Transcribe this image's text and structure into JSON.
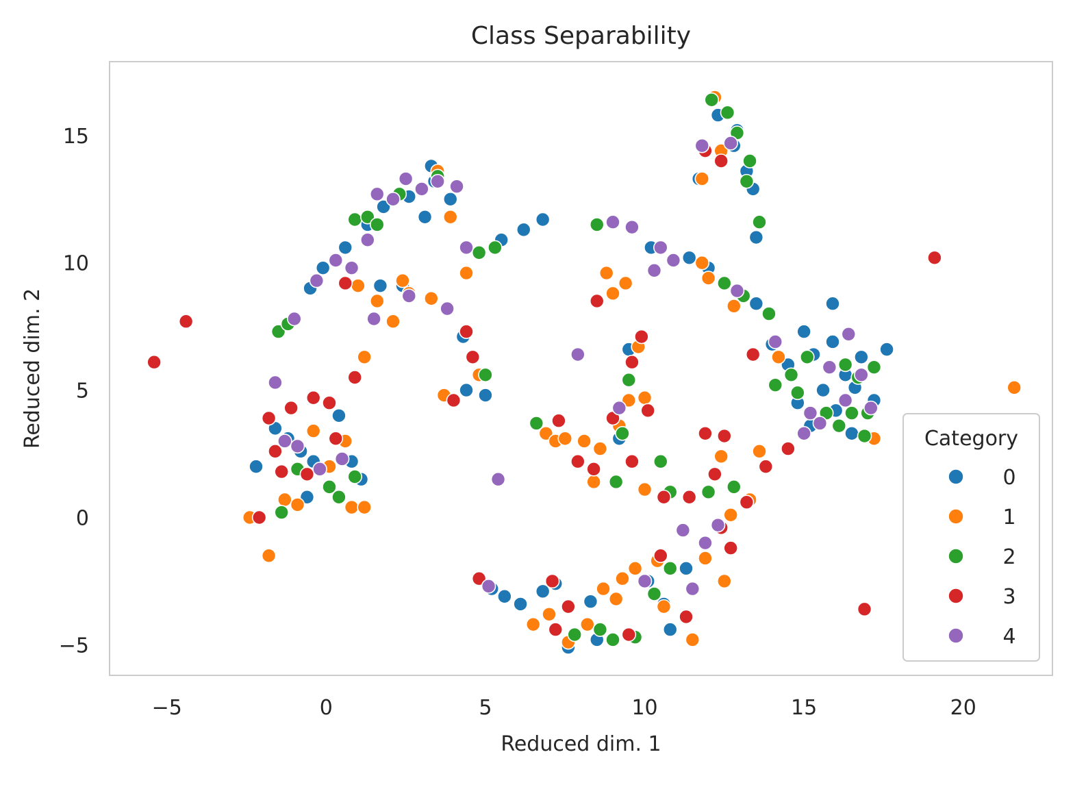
{
  "chart_data": {
    "type": "scatter",
    "title": "Class Separability",
    "xlabel": "Reduced dim. 1",
    "ylabel": "Reduced dim. 2",
    "xlim": [
      -6.8,
      22.8
    ],
    "ylim": [
      -6.2,
      17.9
    ],
    "xticks": [
      -5,
      0,
      5,
      10,
      15,
      20
    ],
    "yticks": [
      -5,
      0,
      5,
      10,
      15
    ],
    "xtick_labels": [
      "−5",
      "0",
      "5",
      "10",
      "15",
      "20"
    ],
    "ytick_labels": [
      "−5",
      "0",
      "5",
      "10",
      "15"
    ],
    "grid": false,
    "legend": {
      "title": "Category",
      "position": "lower-right"
    },
    "series": [
      {
        "name": "0",
        "color": "#1f77b4",
        "points": [
          [
            -2.2,
            2.0
          ],
          [
            -1.6,
            3.5
          ],
          [
            -1.2,
            3.1
          ],
          [
            -0.8,
            2.6
          ],
          [
            -0.4,
            2.2
          ],
          [
            -0.6,
            0.8
          ],
          [
            0.4,
            4.0
          ],
          [
            0.8,
            2.2
          ],
          [
            1.1,
            1.5
          ],
          [
            -0.5,
            9.0
          ],
          [
            -0.1,
            9.8
          ],
          [
            0.6,
            10.6
          ],
          [
            1.3,
            11.5
          ],
          [
            1.8,
            12.2
          ],
          [
            2.6,
            12.6
          ],
          [
            3.1,
            11.8
          ],
          [
            3.4,
            13.2
          ],
          [
            3.9,
            12.5
          ],
          [
            3.3,
            13.8
          ],
          [
            1.7,
            9.1
          ],
          [
            2.4,
            9.1
          ],
          [
            4.3,
            7.1
          ],
          [
            4.4,
            5.0
          ],
          [
            5.0,
            4.8
          ],
          [
            5.5,
            10.9
          ],
          [
            6.2,
            11.3
          ],
          [
            6.8,
            11.7
          ],
          [
            5.2,
            -2.8
          ],
          [
            5.6,
            -3.1
          ],
          [
            6.1,
            -3.4
          ],
          [
            6.8,
            -2.9
          ],
          [
            7.2,
            -2.6
          ],
          [
            7.6,
            -5.1
          ],
          [
            8.3,
            -3.3
          ],
          [
            8.5,
            -4.8
          ],
          [
            9.2,
            3.1
          ],
          [
            9.5,
            6.6
          ],
          [
            10.1,
            -2.5
          ],
          [
            10.6,
            -3.4
          ],
          [
            10.8,
            -4.4
          ],
          [
            11.3,
            -2.0
          ],
          [
            10.2,
            10.6
          ],
          [
            11.4,
            10.2
          ],
          [
            12.0,
            9.8
          ],
          [
            11.7,
            13.3
          ],
          [
            12.3,
            15.8
          ],
          [
            12.8,
            14.6
          ],
          [
            12.9,
            15.2
          ],
          [
            13.2,
            13.6
          ],
          [
            13.4,
            12.9
          ],
          [
            13.5,
            11.0
          ],
          [
            13.5,
            8.4
          ],
          [
            14.0,
            6.8
          ],
          [
            14.5,
            6.0
          ],
          [
            15.0,
            7.3
          ],
          [
            15.3,
            6.4
          ],
          [
            15.6,
            5.0
          ],
          [
            15.9,
            6.9
          ],
          [
            16.0,
            4.2
          ],
          [
            16.3,
            5.6
          ],
          [
            16.5,
            3.3
          ],
          [
            16.8,
            6.3
          ],
          [
            16.6,
            5.1
          ],
          [
            17.2,
            4.6
          ],
          [
            17.6,
            6.6
          ],
          [
            15.9,
            8.4
          ],
          [
            15.2,
            3.6
          ],
          [
            14.8,
            4.5
          ]
        ]
      },
      {
        "name": "1",
        "color": "#ff7f0e",
        "points": [
          [
            -2.4,
            0.0
          ],
          [
            -1.8,
            -1.5
          ],
          [
            -1.3,
            0.7
          ],
          [
            -0.9,
            0.5
          ],
          [
            -0.4,
            3.4
          ],
          [
            0.1,
            2.0
          ],
          [
            0.6,
            3.0
          ],
          [
            0.8,
            0.4
          ],
          [
            1.2,
            0.4
          ],
          [
            1.0,
            9.1
          ],
          [
            1.2,
            6.3
          ],
          [
            1.6,
            8.5
          ],
          [
            2.1,
            7.7
          ],
          [
            2.4,
            9.3
          ],
          [
            2.6,
            8.8
          ],
          [
            3.3,
            8.6
          ],
          [
            3.7,
            4.8
          ],
          [
            3.5,
            13.6
          ],
          [
            3.9,
            11.8
          ],
          [
            4.4,
            9.6
          ],
          [
            4.8,
            5.6
          ],
          [
            6.9,
            3.3
          ],
          [
            7.2,
            3.0
          ],
          [
            7.5,
            3.1
          ],
          [
            8.1,
            3.0
          ],
          [
            8.6,
            2.7
          ],
          [
            8.4,
            1.4
          ],
          [
            8.8,
            9.6
          ],
          [
            9.4,
            9.2
          ],
          [
            9.0,
            8.8
          ],
          [
            9.2,
            3.6
          ],
          [
            9.5,
            4.6
          ],
          [
            9.8,
            6.7
          ],
          [
            10.0,
            4.7
          ],
          [
            10.0,
            1.1
          ],
          [
            10.4,
            -1.7
          ],
          [
            9.3,
            -2.4
          ],
          [
            8.7,
            -2.8
          ],
          [
            8.2,
            -4.2
          ],
          [
            7.6,
            -4.9
          ],
          [
            7.0,
            -3.8
          ],
          [
            6.5,
            -4.2
          ],
          [
            9.1,
            -3.2
          ],
          [
            9.7,
            -2.0
          ],
          [
            10.6,
            -3.5
          ],
          [
            11.5,
            -4.8
          ],
          [
            11.9,
            -1.6
          ],
          [
            12.5,
            -2.5
          ],
          [
            12.7,
            0.1
          ],
          [
            13.3,
            0.7
          ],
          [
            13.6,
            2.6
          ],
          [
            12.4,
            2.4
          ],
          [
            11.8,
            10.0
          ],
          [
            12.0,
            9.4
          ],
          [
            12.4,
            14.4
          ],
          [
            12.2,
            16.5
          ],
          [
            11.8,
            13.3
          ],
          [
            12.8,
            8.3
          ],
          [
            14.2,
            6.3
          ],
          [
            17.2,
            3.1
          ],
          [
            21.6,
            5.1
          ]
        ]
      },
      {
        "name": "2",
        "color": "#2ca02c",
        "points": [
          [
            -1.4,
            0.2
          ],
          [
            -0.9,
            1.9
          ],
          [
            0.1,
            1.2
          ],
          [
            0.4,
            0.8
          ],
          [
            0.9,
            1.6
          ],
          [
            -1.5,
            7.3
          ],
          [
            -1.2,
            7.6
          ],
          [
            0.9,
            11.7
          ],
          [
            1.3,
            11.8
          ],
          [
            1.6,
            11.5
          ],
          [
            2.3,
            12.7
          ],
          [
            3.5,
            13.4
          ],
          [
            4.8,
            10.4
          ],
          [
            5.0,
            5.6
          ],
          [
            5.3,
            10.6
          ],
          [
            6.6,
            3.7
          ],
          [
            8.5,
            11.5
          ],
          [
            9.1,
            1.4
          ],
          [
            9.5,
            5.4
          ],
          [
            9.3,
            3.3
          ],
          [
            10.5,
            2.2
          ],
          [
            10.8,
            1.0
          ],
          [
            12.0,
            1.0
          ],
          [
            12.8,
            1.2
          ],
          [
            9.0,
            -4.8
          ],
          [
            9.7,
            -4.7
          ],
          [
            10.3,
            -3.0
          ],
          [
            8.6,
            -4.4
          ],
          [
            7.8,
            -4.6
          ],
          [
            10.8,
            -2.0
          ],
          [
            12.1,
            16.4
          ],
          [
            12.6,
            15.9
          ],
          [
            12.9,
            15.1
          ],
          [
            13.3,
            14.0
          ],
          [
            13.2,
            13.2
          ],
          [
            13.6,
            11.6
          ],
          [
            12.5,
            9.2
          ],
          [
            13.1,
            8.7
          ],
          [
            13.9,
            8.0
          ],
          [
            14.1,
            5.2
          ],
          [
            14.6,
            5.6
          ],
          [
            14.8,
            4.9
          ],
          [
            15.1,
            6.3
          ],
          [
            15.7,
            4.1
          ],
          [
            16.1,
            3.6
          ],
          [
            16.3,
            6.0
          ],
          [
            16.5,
            4.1
          ],
          [
            16.7,
            5.5
          ],
          [
            17.0,
            4.1
          ],
          [
            17.2,
            5.9
          ],
          [
            16.9,
            3.2
          ]
        ]
      },
      {
        "name": "3",
        "color": "#d62728",
        "points": [
          [
            -5.4,
            6.1
          ],
          [
            -4.4,
            7.7
          ],
          [
            -2.1,
            0.0
          ],
          [
            -1.8,
            3.9
          ],
          [
            -1.6,
            2.6
          ],
          [
            -1.4,
            1.8
          ],
          [
            -1.1,
            4.3
          ],
          [
            -0.6,
            1.7
          ],
          [
            -0.4,
            4.7
          ],
          [
            0.1,
            4.5
          ],
          [
            0.3,
            3.1
          ],
          [
            0.9,
            5.5
          ],
          [
            0.6,
            9.2
          ],
          [
            4.0,
            4.6
          ],
          [
            4.4,
            7.3
          ],
          [
            4.6,
            6.3
          ],
          [
            7.3,
            3.8
          ],
          [
            7.9,
            2.2
          ],
          [
            8.4,
            1.9
          ],
          [
            9.0,
            3.9
          ],
          [
            9.6,
            2.2
          ],
          [
            9.9,
            7.1
          ],
          [
            10.1,
            4.2
          ],
          [
            9.6,
            6.1
          ],
          [
            8.5,
            8.5
          ],
          [
            10.6,
            0.8
          ],
          [
            11.4,
            0.8
          ],
          [
            12.2,
            1.7
          ],
          [
            12.4,
            -0.4
          ],
          [
            12.7,
            -1.2
          ],
          [
            13.2,
            0.6
          ],
          [
            13.8,
            2.0
          ],
          [
            14.5,
            2.7
          ],
          [
            11.9,
            3.3
          ],
          [
            12.5,
            3.2
          ],
          [
            7.6,
            -3.5
          ],
          [
            7.1,
            -2.5
          ],
          [
            7.2,
            -4.4
          ],
          [
            9.5,
            -4.6
          ],
          [
            10.5,
            -1.5
          ],
          [
            11.3,
            -3.9
          ],
          [
            4.8,
            -2.4
          ],
          [
            11.9,
            14.4
          ],
          [
            12.4,
            14.0
          ],
          [
            13.4,
            6.4
          ],
          [
            19.1,
            10.2
          ],
          [
            16.9,
            -3.6
          ]
        ]
      },
      {
        "name": "4",
        "color": "#9467bd",
        "points": [
          [
            -1.6,
            5.3
          ],
          [
            -1.3,
            3.0
          ],
          [
            -0.9,
            2.8
          ],
          [
            -0.2,
            1.9
          ],
          [
            0.5,
            2.3
          ],
          [
            -1.0,
            7.8
          ],
          [
            -0.3,
            9.3
          ],
          [
            0.3,
            10.1
          ],
          [
            0.8,
            9.8
          ],
          [
            1.3,
            10.9
          ],
          [
            1.6,
            12.7
          ],
          [
            2.1,
            12.5
          ],
          [
            2.5,
            13.3
          ],
          [
            3.0,
            12.9
          ],
          [
            3.5,
            13.2
          ],
          [
            4.1,
            13.0
          ],
          [
            4.4,
            10.6
          ],
          [
            1.5,
            7.8
          ],
          [
            2.6,
            8.7
          ],
          [
            3.8,
            8.2
          ],
          [
            5.1,
            -2.7
          ],
          [
            5.4,
            1.5
          ],
          [
            7.9,
            6.4
          ],
          [
            9.2,
            4.3
          ],
          [
            9.0,
            11.6
          ],
          [
            9.6,
            11.4
          ],
          [
            10.3,
            9.7
          ],
          [
            10.5,
            10.6
          ],
          [
            10.9,
            10.1
          ],
          [
            11.2,
            -0.5
          ],
          [
            11.5,
            -2.8
          ],
          [
            11.9,
            -1.0
          ],
          [
            12.3,
            -0.3
          ],
          [
            10.0,
            -2.5
          ],
          [
            11.8,
            14.6
          ],
          [
            12.7,
            14.7
          ],
          [
            12.9,
            8.9
          ],
          [
            14.1,
            6.9
          ],
          [
            15.2,
            4.1
          ],
          [
            15.5,
            3.7
          ],
          [
            15.8,
            5.9
          ],
          [
            16.3,
            4.6
          ],
          [
            16.8,
            5.6
          ],
          [
            17.1,
            4.3
          ],
          [
            16.4,
            7.2
          ],
          [
            15.0,
            3.3
          ]
        ]
      }
    ]
  }
}
